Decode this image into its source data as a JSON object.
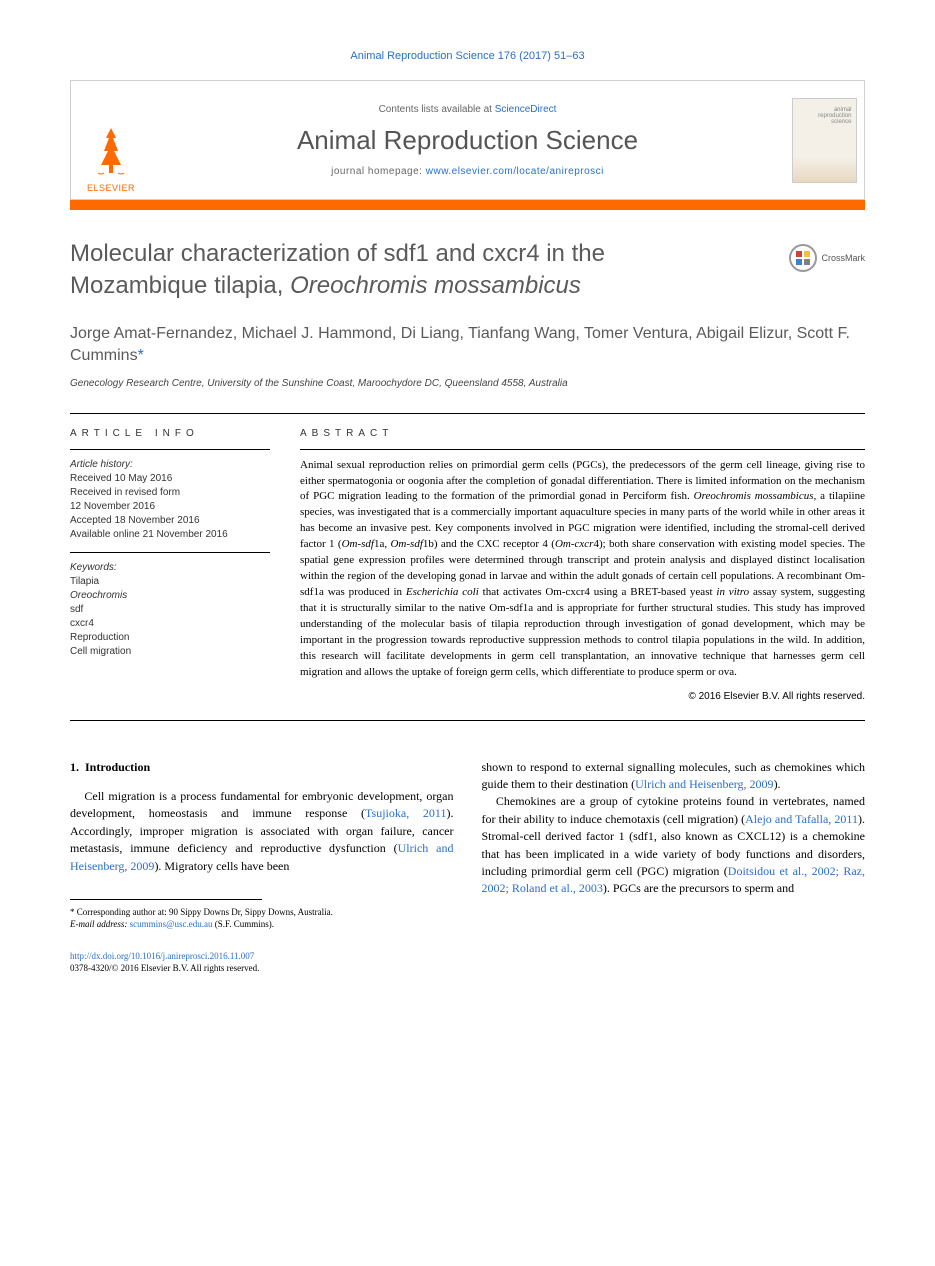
{
  "header": {
    "citation": "Animal Reproduction Science 176 (2017) 51–63",
    "contents_prefix": "Contents lists available at ",
    "contents_link": "ScienceDirect",
    "journal_name": "Animal Reproduction Science",
    "homepage_prefix": "journal homepage: ",
    "homepage_url": "www.elsevier.com/locate/anireprosci",
    "elsevier_label": "ELSEVIER",
    "cover_title_1": "animal",
    "cover_title_2": "reproduction",
    "cover_title_3": "science"
  },
  "title": {
    "line1": "Molecular characterization of sdf1 and cxcr4 in the",
    "line2_plain": "Mozambique tilapia, ",
    "line2_italic": "Oreochromis mossambicus"
  },
  "crossmark_label": "CrossMark",
  "authors": "Jorge Amat-Fernandez, Michael J. Hammond, Di Liang, Tianfang Wang, Tomer Ventura, Abigail Elizur, Scott F. Cummins",
  "author_marker": "*",
  "affiliation": "Genecology Research Centre, University of the Sunshine Coast, Maroochydore DC, Queensland 4558, Australia",
  "article_info": {
    "header": "ARTICLE INFO",
    "history_label": "Article history:",
    "received": "Received 10 May 2016",
    "revised1": "Received in revised form",
    "revised2": "12 November 2016",
    "accepted": "Accepted 18 November 2016",
    "online": "Available online 21 November 2016",
    "keywords_label": "Keywords:",
    "kw1": "Tilapia",
    "kw2": "Oreochromis",
    "kw3": "sdf",
    "kw4": "cxcr4",
    "kw5": "Reproduction",
    "kw6": "Cell migration"
  },
  "abstract": {
    "header": "ABSTRACT",
    "text_parts": [
      {
        "t": "Animal sexual reproduction relies on primordial germ cells (PGCs), the predecessors of the germ cell lineage, giving rise to either spermatogonia or oogonia after the completion of gonadal differentiation. There is limited information on the mechanism of PGC migration leading to the formation of the primordial gonad in Perciform fish. "
      },
      {
        "t": "Oreochromis mossambicus",
        "i": true
      },
      {
        "t": ", a tilapiine species, was investigated that is a commercially important aquaculture species in many parts of the world while in other areas it has become an invasive pest. Key components involved in PGC migration were identified, including the stromal-cell derived factor 1 ("
      },
      {
        "t": "Om-sdf",
        "i": true
      },
      {
        "t": "1a, "
      },
      {
        "t": "Om-sdf",
        "i": true
      },
      {
        "t": "1b) and the CXC receptor 4 ("
      },
      {
        "t": "Om-cxcr",
        "i": true
      },
      {
        "t": "4); both share conservation with existing model species. The spatial gene expression profiles were determined through transcript and protein analysis and displayed distinct localisation within the region of the developing gonad in larvae and within the adult gonads of certain cell populations. A recombinant Om-sdf1a was produced in "
      },
      {
        "t": "Escherichia coli",
        "i": true
      },
      {
        "t": " that activates Om-cxcr4 using a BRET-based yeast "
      },
      {
        "t": "in vitro",
        "i": true
      },
      {
        "t": " assay system, suggesting that it is structurally similar to the native Om-sdf1a and is appropriate for further structural studies. This study has improved understanding of the molecular basis of tilapia reproduction through investigation of gonad development, which may be important in the progression towards reproductive suppression methods to control tilapia populations in the wild. In addition, this research will facilitate developments in germ cell transplantation, an innovative technique that harnesses germ cell migration and allows the uptake of foreign germ cells, which differentiate to produce sperm or ova."
      }
    ],
    "copyright": "© 2016 Elsevier B.V. All rights reserved."
  },
  "body": {
    "section_number": "1.",
    "section_title": "Introduction",
    "col1_p1_a": "Cell migration is a process fundamental for embryonic development, organ development, homeostasis and immune response (",
    "col1_p1_l1": "Tsujioka, 2011",
    "col1_p1_b": "). Accordingly, improper migration is associated with organ failure, cancer metastasis, immune deficiency and reproductive dysfunction (",
    "col1_p1_l2": "Ulrich and Heisenberg, 2009",
    "col1_p1_c": "). Migratory cells have been",
    "col2_p1_a": "shown to respond to external signalling molecules, such as chemokines which guide them to their destination (",
    "col2_p1_l1": "Ulrich and Heisenberg, 2009",
    "col2_p1_b": ").",
    "col2_p2_a": "Chemokines are a group of cytokine proteins found in vertebrates, named for their ability to induce chemotaxis (cell migration) (",
    "col2_p2_l1": "Alejo and Tafalla, 2011",
    "col2_p2_b": "). Stromal-cell derived factor 1 (sdf1, also known as CXCL12) is a chemokine that has been implicated in a wide variety of body functions and disorders, including primordial germ cell (PGC) migration (",
    "col2_p2_l2": "Doitsidou et al., 2002; Raz, 2002; Roland et al., 2003",
    "col2_p2_c": "). PGCs are the precursors to sperm and"
  },
  "footnote": {
    "corr_label": "* Corresponding author at: 90 Sippy Downs Dr, Sippy Downs, Australia.",
    "email_label": "E-mail address:",
    "email": "scummins@usc.edu.au",
    "email_suffix": " (S.F. Cummins)."
  },
  "doi": {
    "url": "http://dx.doi.org/10.1016/j.anireprosci.2016.11.007",
    "line2": "0378-4320/© 2016 Elsevier B.V. All rights reserved."
  },
  "colors": {
    "accent_orange": "#ff6a00",
    "link_blue": "#2970c8",
    "title_gray": "#5a5a5a"
  }
}
